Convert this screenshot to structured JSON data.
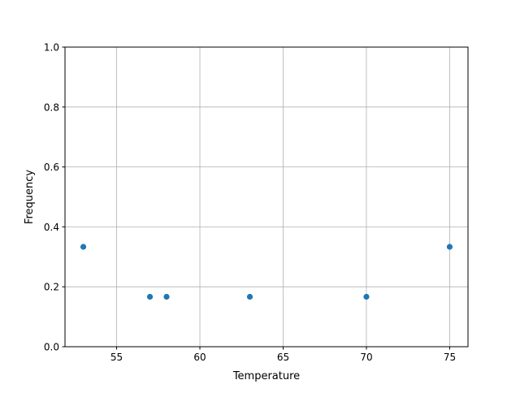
{
  "chart_data": {
    "type": "scatter",
    "xlabel": "Temperature",
    "ylabel": "Frequency",
    "x": [
      53,
      57,
      58,
      63,
      70,
      75
    ],
    "y": [
      0.3333,
      0.1667,
      0.1667,
      0.1667,
      0.1667,
      0.3333
    ],
    "xlim": [
      51.9,
      76.1
    ],
    "ylim": [
      0.0,
      1.0
    ],
    "xticks": [
      "55",
      "60",
      "65",
      "70",
      "75"
    ],
    "xtick_values": [
      55,
      60,
      65,
      70,
      75
    ],
    "yticks": [
      "0.0",
      "0.2",
      "0.4",
      "0.6",
      "0.8",
      "1.0"
    ],
    "ytick_values": [
      0,
      0.2,
      0.4,
      0.6,
      0.8,
      1.0
    ],
    "grid": true,
    "marker_color": "#1f77b4"
  }
}
